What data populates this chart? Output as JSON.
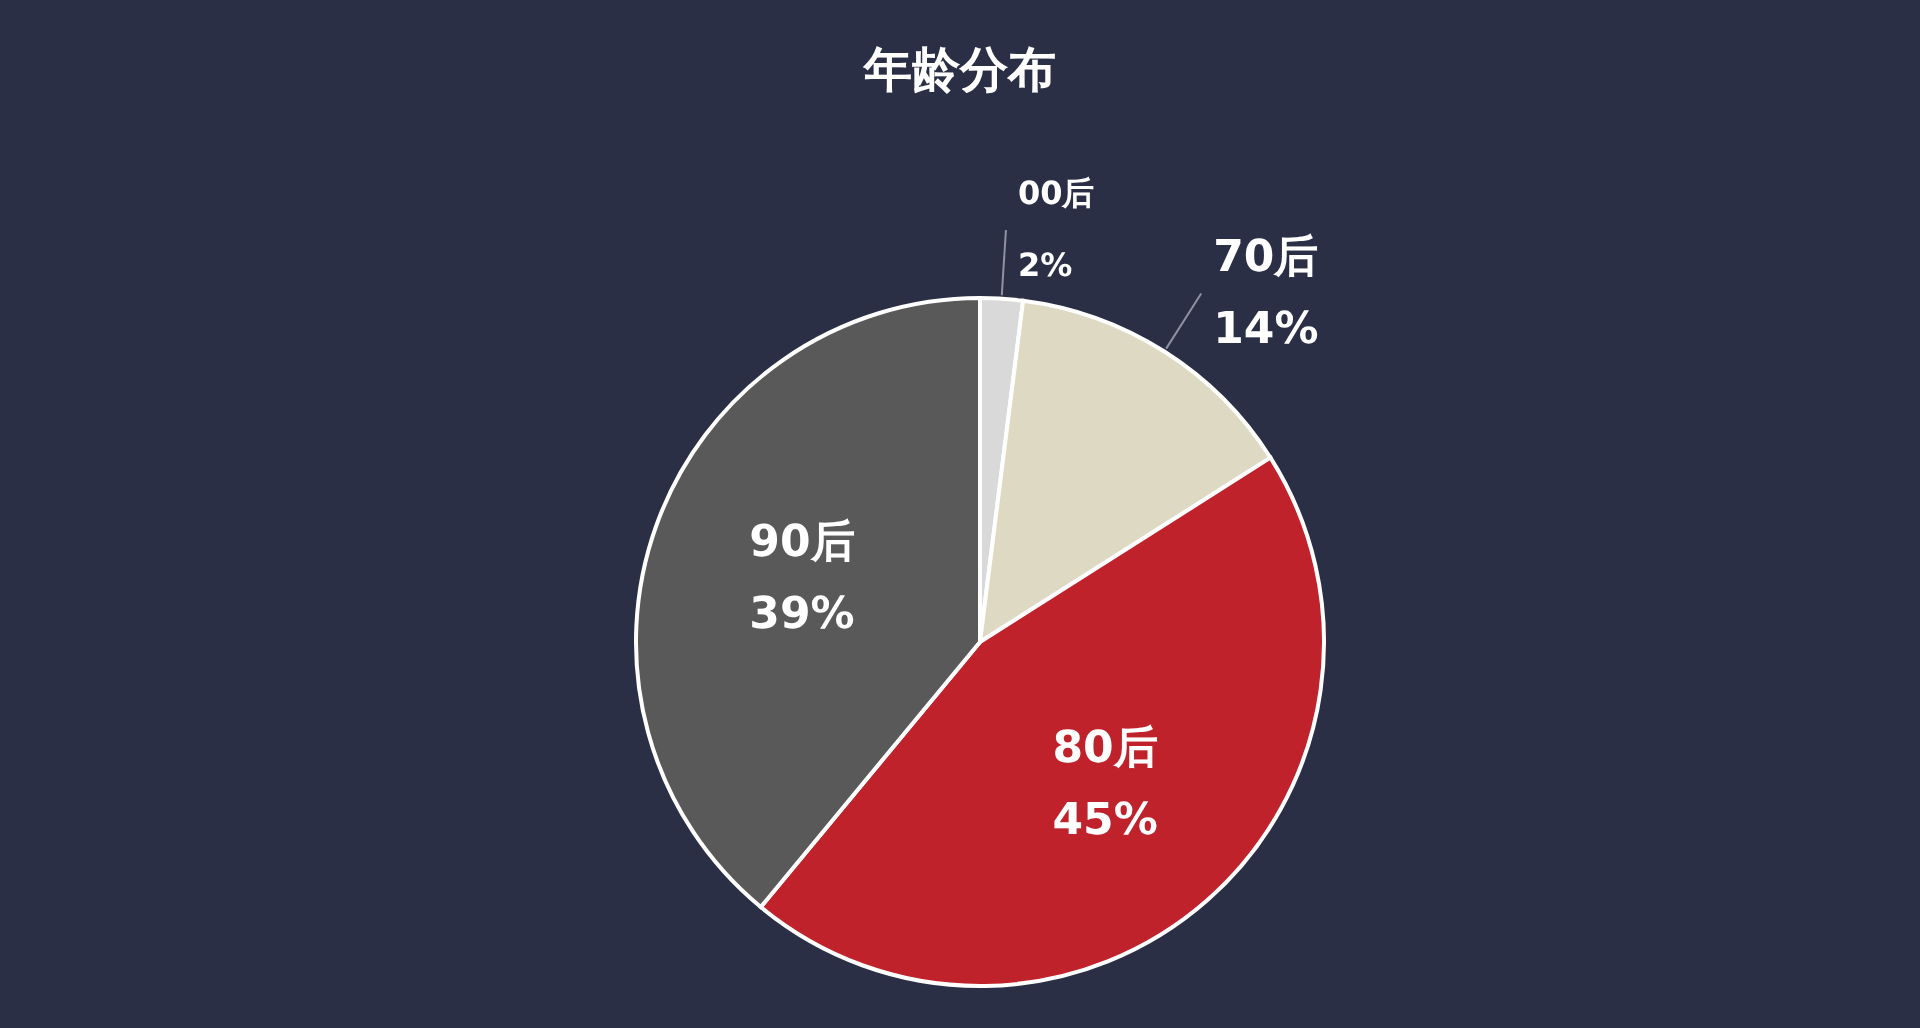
{
  "chart_data": {
    "type": "pie",
    "title": "年龄分布",
    "categories": [
      "00后",
      "70后",
      "80后",
      "90后"
    ],
    "values": [
      2,
      14,
      45,
      39
    ],
    "colors": [
      "#d9d9d9",
      "#ddd9c3",
      "#c0222c",
      "#595959"
    ],
    "value_labels": [
      "2%",
      "14%",
      "45%",
      "39%"
    ]
  }
}
